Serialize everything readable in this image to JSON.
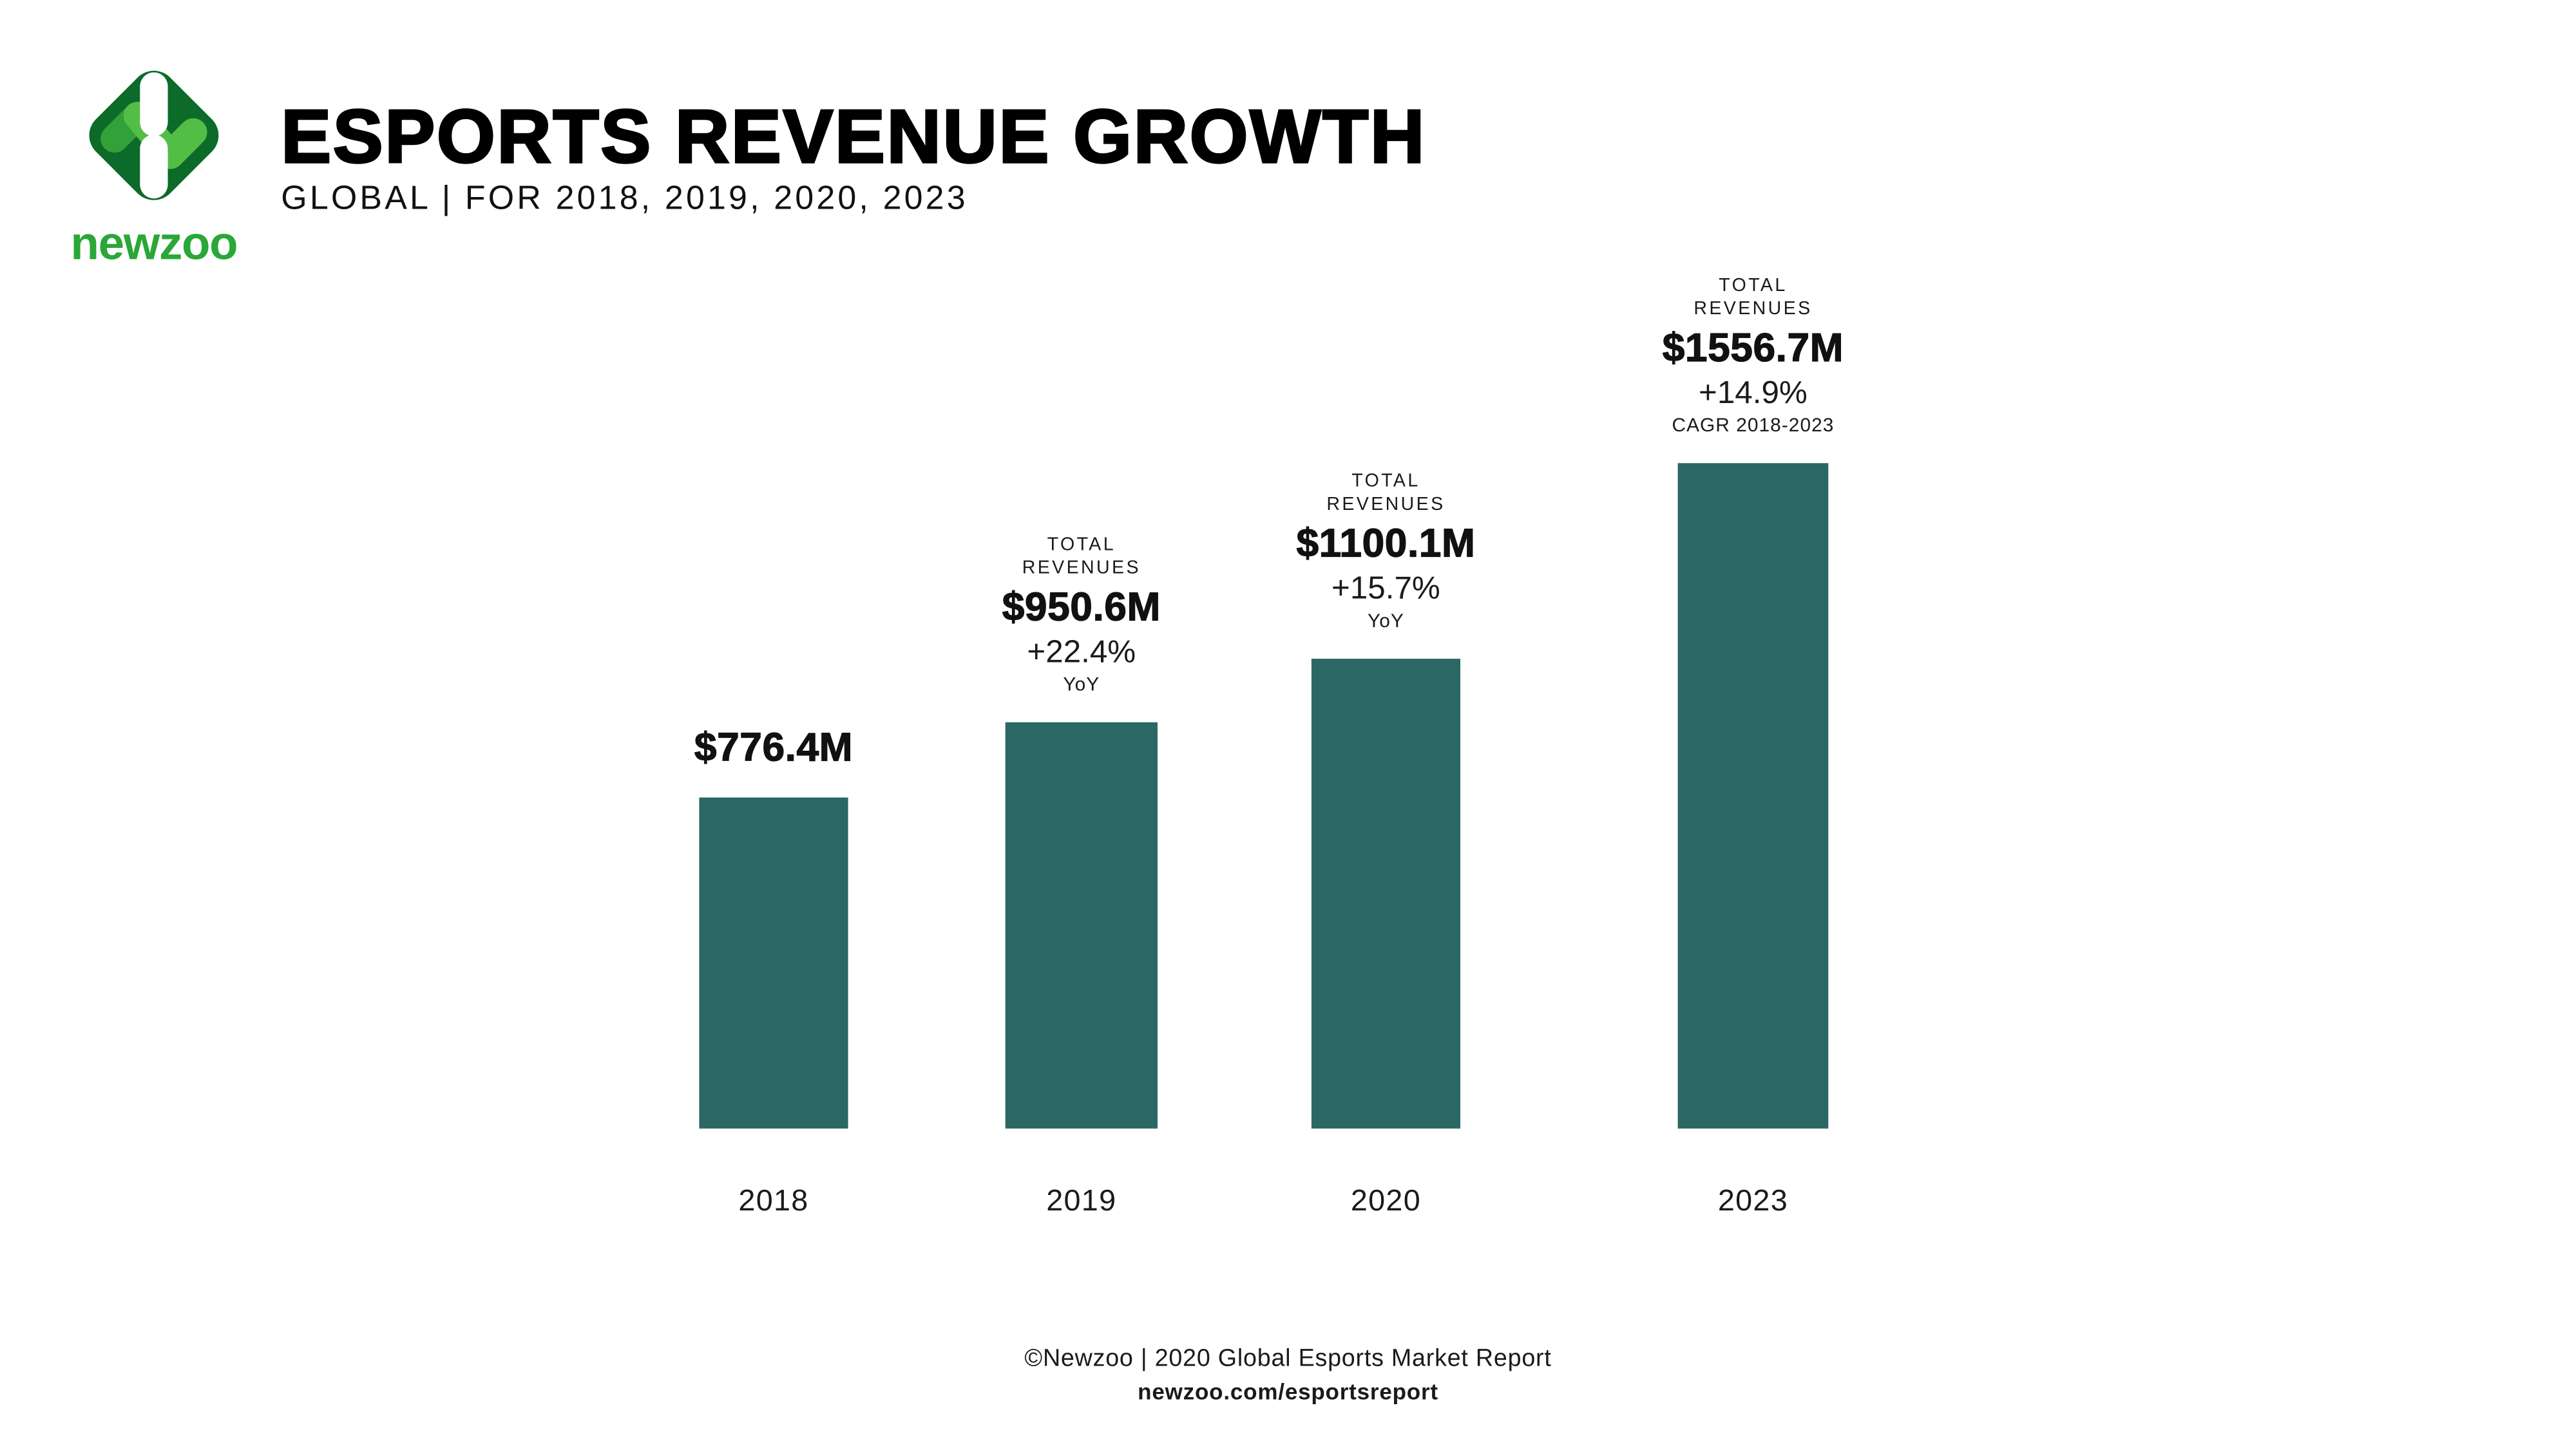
{
  "logo": {
    "wordmark": "newzoo"
  },
  "header": {
    "title": "ESPORTS REVENUE GROWTH",
    "subtitle": "GLOBAL | FOR 2018, 2019, 2020, 2023"
  },
  "chart_data": {
    "type": "bar",
    "title": "ESPORTS REVENUE GROWTH",
    "subtitle": "GLOBAL | FOR 2018, 2019, 2020, 2023",
    "categories": [
      "2018",
      "2019",
      "2020",
      "2023"
    ],
    "values": [
      776.4,
      950.6,
      1100.1,
      1556.7
    ],
    "value_labels": [
      "$776.4M",
      "$950.6M",
      "$1100.1M",
      "$1556.7M"
    ],
    "ylim": [
      0,
      1556.7
    ],
    "grid": false,
    "legend": false,
    "bar_color": "#2B6763",
    "columns": [
      {
        "pre": "",
        "value_label": "$776.4M",
        "delta": "",
        "caption": ""
      },
      {
        "pre": "TOTAL REVENUES",
        "value_label": "$950.6M",
        "delta": "+22.4%",
        "caption": "YoY"
      },
      {
        "pre": "TOTAL REVENUES",
        "value_label": "$1100.1M",
        "delta": "+15.7%",
        "caption": "YoY"
      },
      {
        "pre": "TOTAL REVENUES",
        "value_label": "$1556.7M",
        "delta": "+14.9%",
        "caption": "CAGR 2018-2023"
      }
    ]
  },
  "footer": {
    "line1": "©Newzoo | 2020 Global Esports Market Report",
    "line2": "newzoo.com/esportsreport"
  },
  "colors": {
    "bar": "#2B6763",
    "brand_dark_green": "#0C6B28",
    "brand_mid_green": "#33A13A",
    "brand_light_green": "#52BE46",
    "brand_wordmark_green": "#29A737",
    "text": "#111111"
  }
}
